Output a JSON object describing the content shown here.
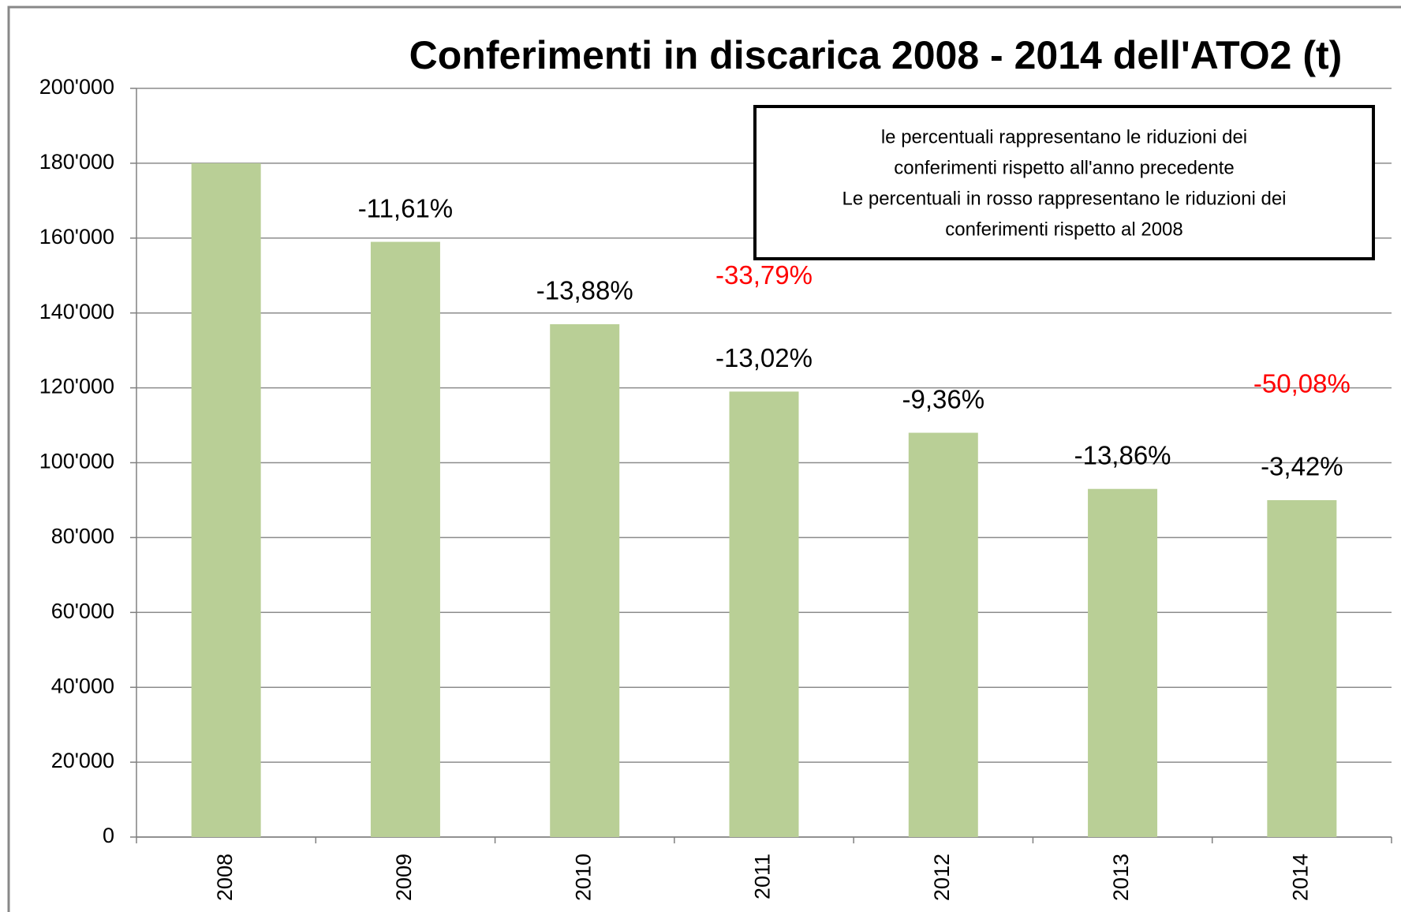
{
  "chart_data": {
    "type": "bar",
    "title": "Conferimenti in discarica 2008 - 2014 dell'ATO2 (t)",
    "categories": [
      "2008",
      "2009",
      "2010",
      "2011",
      "2012",
      "2013",
      "2014"
    ],
    "values": [
      180000,
      159000,
      137000,
      119000,
      108000,
      93000,
      90000
    ],
    "color": "#b9cf96",
    "ylim": [
      0,
      200000
    ],
    "yticks": [
      0,
      {
        "value": 20000,
        "label": "20'000"
      },
      {
        "value": 40000,
        "label": "40'000"
      },
      {
        "value": 60000,
        "label": "60'000"
      },
      {
        "value": 80000,
        "label": "80'000"
      },
      {
        "value": 100000,
        "label": "100'000"
      },
      {
        "value": 120000,
        "label": "120'000"
      },
      {
        "value": 140000,
        "label": "140'000"
      },
      {
        "value": 160000,
        "label": "160'000"
      },
      {
        "value": 180000,
        "label": "180'000"
      },
      {
        "value": 200000,
        "label": "200'000"
      }
    ],
    "grid": true,
    "change_labels": [
      null,
      "-11,61%",
      "-13,88%",
      "-13,02%",
      "-9,36%",
      "-13,86%",
      "-3,42%"
    ],
    "labels_vs_2008": [
      null,
      null,
      null,
      "-33,79%",
      null,
      null,
      "-50,08%"
    ],
    "labels_vs_2008_color": "#ff0000",
    "note": [
      "le percentuali rappresentano le riduzioni dei",
      "conferimenti  rispetto all'anno precedente",
      "Le percentuali in rosso rappresentano le riduzioni dei",
      "conferimenti  rispetto al 2008"
    ]
  }
}
